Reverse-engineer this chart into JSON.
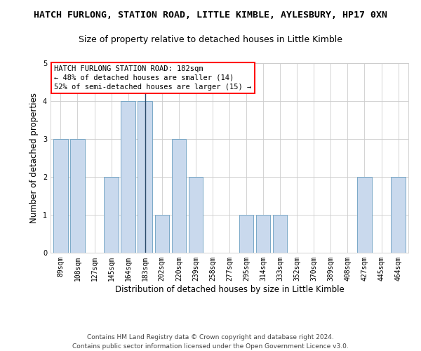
{
  "title": "HATCH FURLONG, STATION ROAD, LITTLE KIMBLE, AYLESBURY, HP17 0XN",
  "subtitle": "Size of property relative to detached houses in Little Kimble",
  "xlabel": "Distribution of detached houses by size in Little Kimble",
  "ylabel": "Number of detached properties",
  "categories": [
    "89sqm",
    "108sqm",
    "127sqm",
    "145sqm",
    "164sqm",
    "183sqm",
    "202sqm",
    "220sqm",
    "239sqm",
    "258sqm",
    "277sqm",
    "295sqm",
    "314sqm",
    "333sqm",
    "352sqm",
    "370sqm",
    "389sqm",
    "408sqm",
    "427sqm",
    "445sqm",
    "464sqm"
  ],
  "values": [
    3,
    3,
    0,
    2,
    4,
    4,
    1,
    3,
    2,
    0,
    0,
    1,
    1,
    1,
    0,
    0,
    0,
    0,
    2,
    0,
    2
  ],
  "bar_color": "#c9d9ed",
  "bar_edge_color": "#6a9ec0",
  "highlight_index": 5,
  "highlight_line_color": "#2a4a6a",
  "annotation_text": "HATCH FURLONG STATION ROAD: 182sqm\n← 48% of detached houses are smaller (14)\n52% of semi-detached houses are larger (15) →",
  "annotation_box_color": "white",
  "annotation_box_edge": "red",
  "ylim": [
    0,
    5
  ],
  "yticks": [
    0,
    1,
    2,
    3,
    4,
    5
  ],
  "footer": "Contains HM Land Registry data © Crown copyright and database right 2024.\nContains public sector information licensed under the Open Government Licence v3.0.",
  "bg_color": "white",
  "grid_color": "#cccccc",
  "title_fontsize": 9.5,
  "subtitle_fontsize": 9,
  "xlabel_fontsize": 8.5,
  "ylabel_fontsize": 8.5,
  "tick_fontsize": 7,
  "footer_fontsize": 6.5,
  "annotation_fontsize": 7.5
}
